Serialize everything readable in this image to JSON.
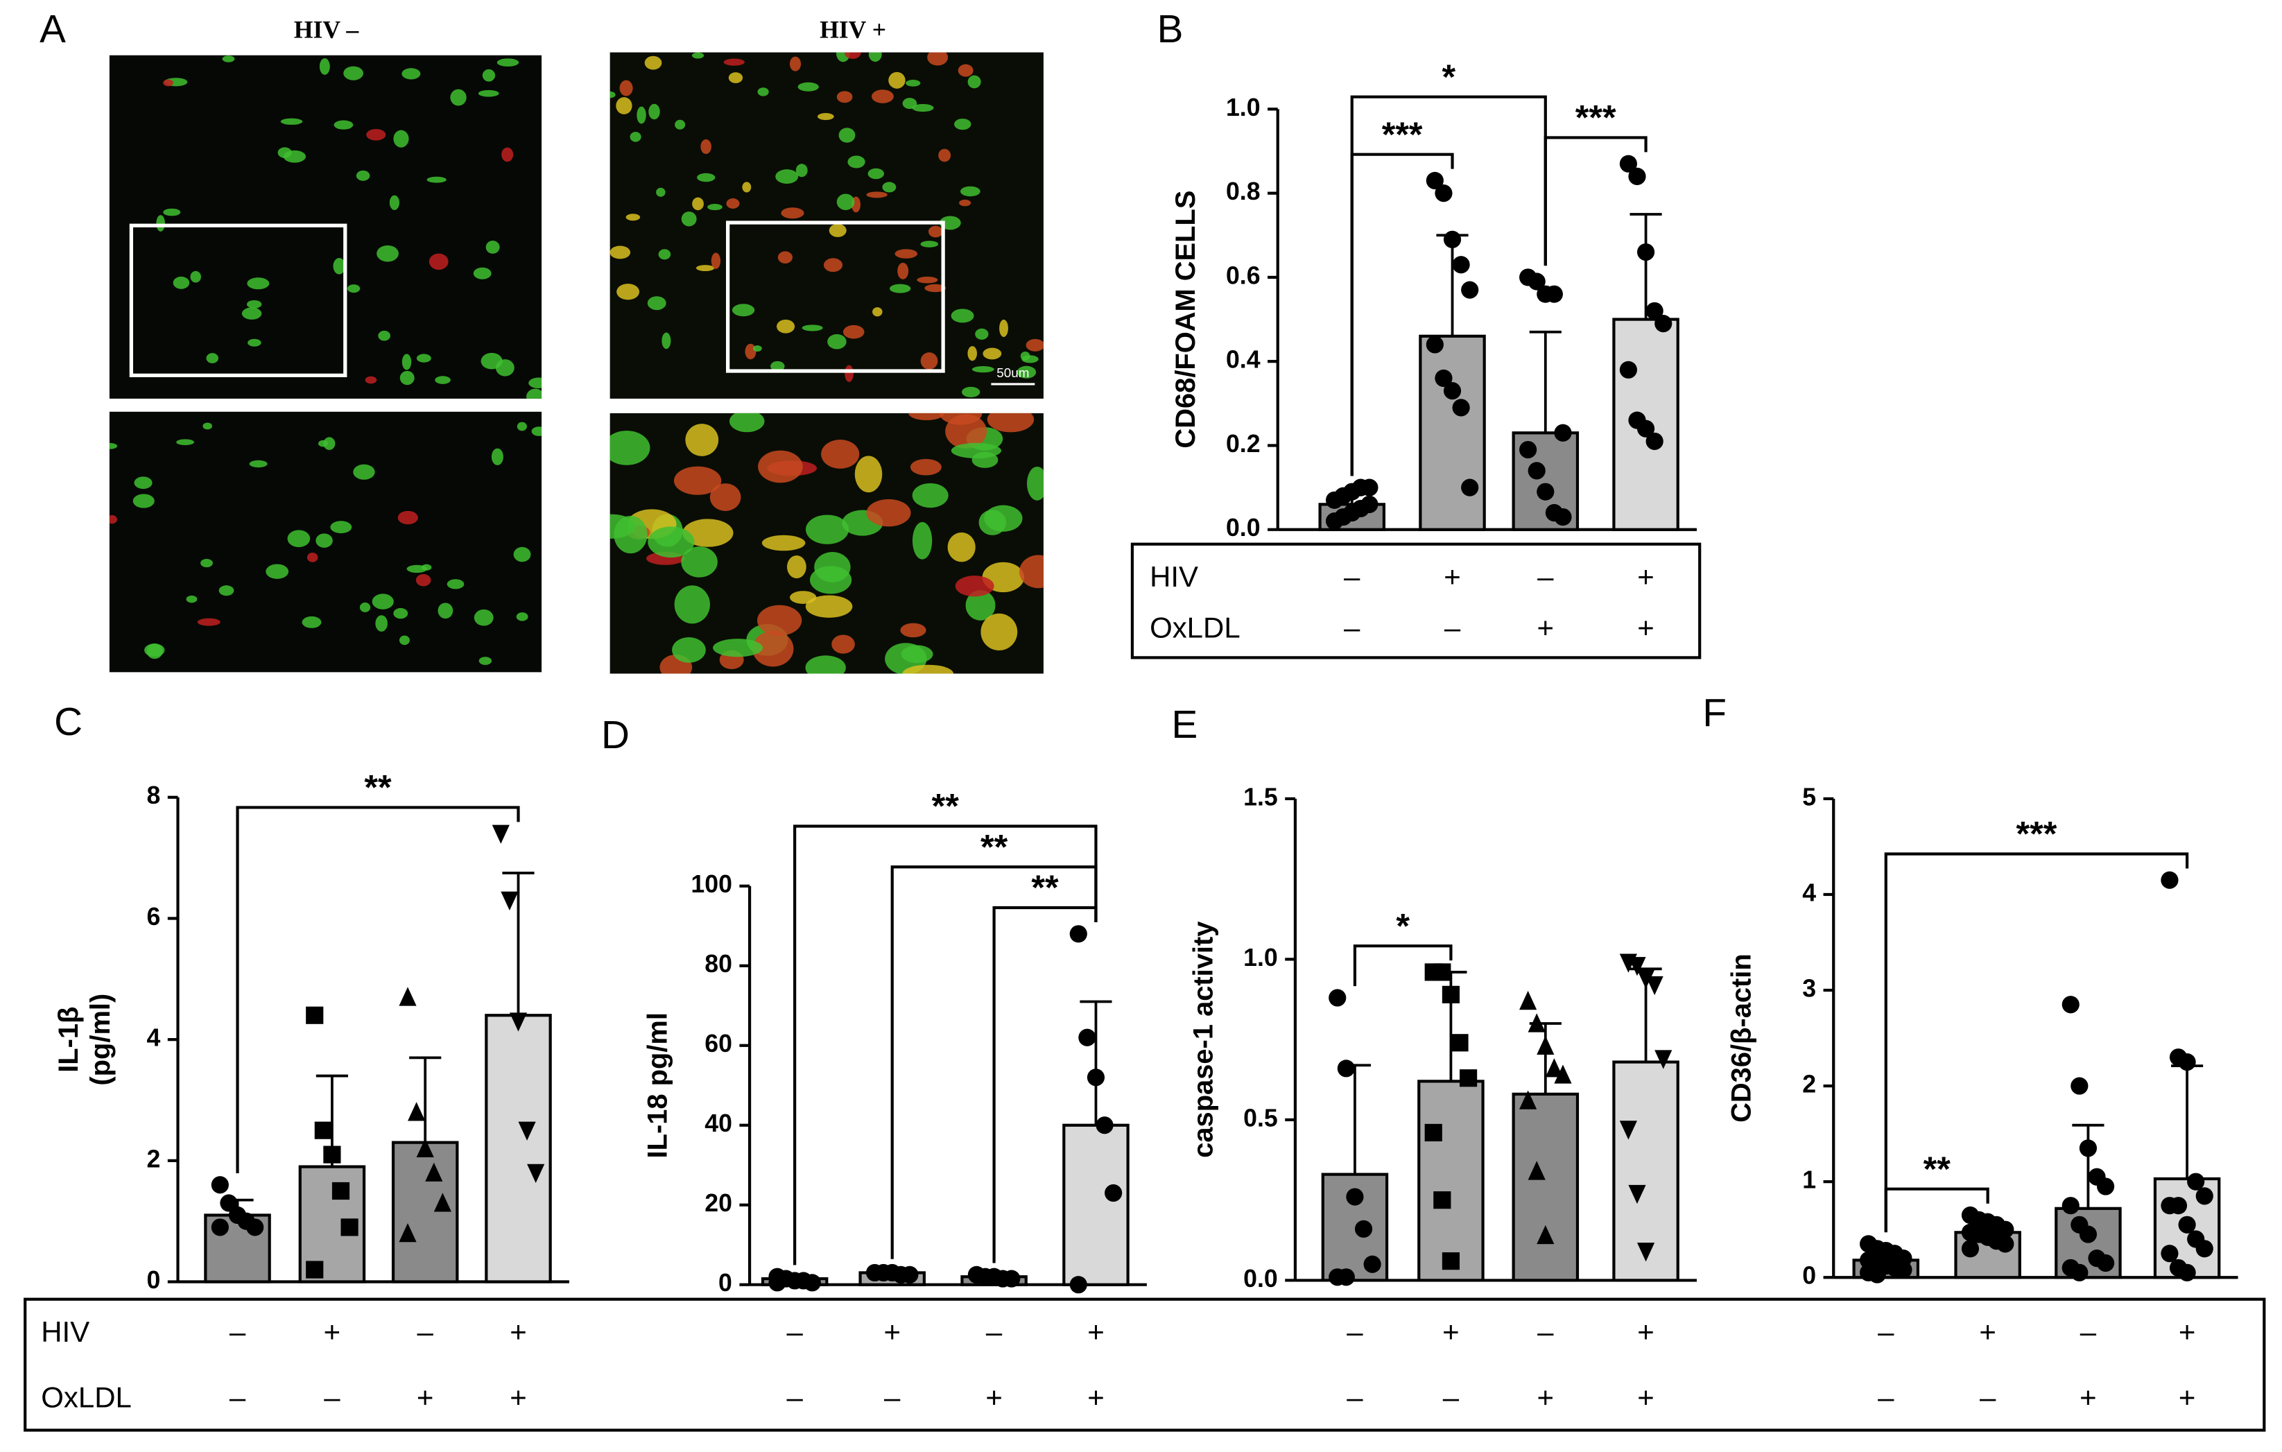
{
  "image_panel": {
    "label": "A",
    "columns": [
      "HIV –",
      "HIV +"
    ],
    "scale_bar": "50um"
  },
  "bottom_table": {
    "names": [
      "HIV",
      "OxLDL"
    ]
  },
  "chart_data": [
    {
      "type": "bar",
      "panel": "B",
      "ylabel": [
        "CD68/FOAM CELLS"
      ],
      "ylim": [
        0,
        1.0
      ],
      "yticks": [
        {
          "value": 0,
          "label": "0.0"
        },
        0.2,
        0.4,
        0.6,
        0.8,
        {
          "value": 1,
          "label": "1.0"
        }
      ],
      "values": [
        0.06,
        0.46,
        0.23,
        0.5
      ],
      "errors": [
        0.03,
        0.24,
        0.24,
        0.25
      ],
      "colors": [
        "#8c8c8c",
        "#a6a6a6",
        "#8a8a8a",
        "#d9d9d9"
      ],
      "markers": [
        "circle",
        "circle",
        "circle",
        "circle"
      ],
      "points": [
        [
          0.02,
          0.03,
          0.04,
          0.05,
          0.06,
          0.07,
          0.08,
          0.09,
          0.1,
          0.1
        ],
        [
          0.83,
          0.8,
          0.69,
          0.63,
          0.57,
          0.44,
          0.36,
          0.33,
          0.29,
          0.1
        ],
        [
          0.6,
          0.59,
          0.56,
          0.56,
          0.23,
          0.19,
          0.14,
          0.09,
          0.04,
          0.03
        ],
        [
          0.87,
          0.84,
          0.66,
          0.52,
          0.49,
          0.38,
          0.26,
          0.24,
          0.21
        ]
      ],
      "brackets": [
        {
          "label": "***",
          "between": [
            0,
            1
          ]
        },
        {
          "label": "***",
          "between": [
            2,
            3
          ]
        },
        {
          "label": "*",
          "between": [
            0,
            2
          ]
        }
      ],
      "conditions": {
        "names": [
          "HIV",
          "OxLDL"
        ],
        "rows": [
          [
            "–",
            "+",
            "–",
            "+"
          ],
          [
            "–",
            "–",
            "+",
            "+"
          ]
        ]
      }
    },
    {
      "type": "bar",
      "panel": "C",
      "ylabel": [
        "IL-1β",
        "(pg/ml)"
      ],
      "ylim": [
        0,
        8
      ],
      "yticks": [
        0,
        2,
        4,
        6,
        8
      ],
      "values": [
        1.1,
        1.9,
        2.3,
        4.4
      ],
      "errors": [
        0.25,
        1.5,
        1.4,
        2.35
      ],
      "colors": [
        "#8c8c8c",
        "#a6a6a6",
        "#8a8a8a",
        "#d9d9d9"
      ],
      "markers": [
        "circle",
        "square",
        "triangle",
        "triangle-down"
      ],
      "points": [
        [
          1.6,
          1.3,
          1.1,
          1.0,
          0.9,
          0.9
        ],
        [
          4.4,
          2.5,
          2.1,
          1.5,
          0.9,
          0.2
        ],
        [
          4.7,
          2.8,
          2.2,
          1.8,
          1.3,
          0.8
        ],
        [
          7.4,
          6.3,
          4.3,
          2.5,
          1.8
        ]
      ],
      "brackets": [
        {
          "label": "**",
          "between": [
            0,
            3
          ]
        }
      ],
      "conditions": {
        "rows": [
          [
            "–",
            "+",
            "–",
            "+"
          ],
          [
            "–",
            "–",
            "+",
            "+"
          ]
        ]
      }
    },
    {
      "type": "bar",
      "panel": "D",
      "ylabel": [
        "IL-18 pg/ml"
      ],
      "ylim": [
        0,
        100
      ],
      "yticks": [
        0,
        20,
        40,
        60,
        80,
        100
      ],
      "values": [
        1.5,
        3,
        2,
        40
      ],
      "errors": [
        0.5,
        0.5,
        0.5,
        31
      ],
      "colors": [
        "#8c8c8c",
        "#a6a6a6",
        "#8a8a8a",
        "#d9d9d9"
      ],
      "markers": [
        "circle",
        "circle",
        "circle",
        "circle"
      ],
      "points": [
        [
          2,
          1.5,
          1,
          1,
          0.5,
          0.5
        ],
        [
          3,
          3,
          3,
          2.5,
          2.5
        ],
        [
          2.5,
          2,
          2,
          1.5,
          1.5
        ],
        [
          88,
          62,
          52,
          40,
          23,
          0
        ]
      ],
      "brackets": [
        {
          "label": "**",
          "between": [
            2,
            3
          ]
        },
        {
          "label": "**",
          "between": [
            1,
            3
          ]
        },
        {
          "label": "**",
          "between": [
            0,
            3
          ]
        }
      ],
      "conditions": {
        "rows": [
          [
            "–",
            "+",
            "–",
            "+"
          ],
          [
            "–",
            "–",
            "+",
            "+"
          ]
        ]
      }
    },
    {
      "type": "bar",
      "panel": "E",
      "ylabel": [
        "caspase-1 activity"
      ],
      "ylim": [
        0,
        1.5
      ],
      "yticks": [
        {
          "value": 0,
          "label": "0.0"
        },
        0.5,
        {
          "value": 1,
          "label": "1.0"
        },
        1.5
      ],
      "values": [
        0.33,
        0.62,
        0.58,
        0.68
      ],
      "errors": [
        0.34,
        0.34,
        0.22,
        0.29
      ],
      "colors": [
        "#8c8c8c",
        "#a6a6a6",
        "#8a8a8a",
        "#d9d9d9"
      ],
      "markers": [
        "circle",
        "square",
        "triangle",
        "triangle-down"
      ],
      "points": [
        [
          0.88,
          0.66,
          0.26,
          0.16,
          0.05,
          0.01,
          0.01
        ],
        [
          0.96,
          0.96,
          0.89,
          0.74,
          0.63,
          0.46,
          0.25,
          0.06
        ],
        [
          0.87,
          0.8,
          0.73,
          0.66,
          0.64,
          0.56,
          0.34,
          0.14
        ],
        [
          0.99,
          0.98,
          0.94,
          0.92,
          0.69,
          0.47,
          0.27,
          0.09
        ]
      ],
      "brackets": [
        {
          "label": "*",
          "between": [
            0,
            1
          ]
        }
      ],
      "conditions": {
        "rows": [
          [
            "–",
            "+",
            "–",
            "+"
          ],
          [
            "–",
            "–",
            "+",
            "+"
          ]
        ]
      }
    },
    {
      "type": "bar",
      "panel": "F",
      "ylabel": [
        "CD36/β-actin"
      ],
      "ylim": [
        0,
        5
      ],
      "yticks": [
        0,
        1,
        2,
        3,
        4,
        5
      ],
      "values": [
        0.18,
        0.47,
        0.72,
        1.03
      ],
      "errors": [
        0.1,
        0.12,
        0.87,
        1.18
      ],
      "colors": [
        "#8c8c8c",
        "#a6a6a6",
        "#8a8a8a",
        "#d9d9d9"
      ],
      "markers": [
        "circle",
        "circle",
        "circle",
        "circle"
      ],
      "points": [
        [
          0.35,
          0.3,
          0.28,
          0.25,
          0.2,
          0.18,
          0.15,
          0.12,
          0.1,
          0.08,
          0.05,
          0.03
        ],
        [
          0.65,
          0.6,
          0.58,
          0.55,
          0.5,
          0.47,
          0.45,
          0.42,
          0.38,
          0.35,
          0.3
        ],
        [
          2.85,
          2.0,
          1.35,
          1.05,
          0.95,
          0.75,
          0.55,
          0.45,
          0.2,
          0.15,
          0.1,
          0.05
        ],
        [
          4.15,
          2.3,
          2.25,
          1.0,
          0.85,
          0.75,
          0.75,
          0.55,
          0.4,
          0.3,
          0.25,
          0.1,
          0.05
        ]
      ],
      "brackets": [
        {
          "label": "**",
          "between": [
            0,
            1
          ]
        },
        {
          "label": "***",
          "between": [
            0,
            3
          ]
        }
      ],
      "conditions": {
        "rows": [
          [
            "–",
            "+",
            "–",
            "+"
          ],
          [
            "–",
            "–",
            "+",
            "+"
          ]
        ]
      }
    }
  ]
}
